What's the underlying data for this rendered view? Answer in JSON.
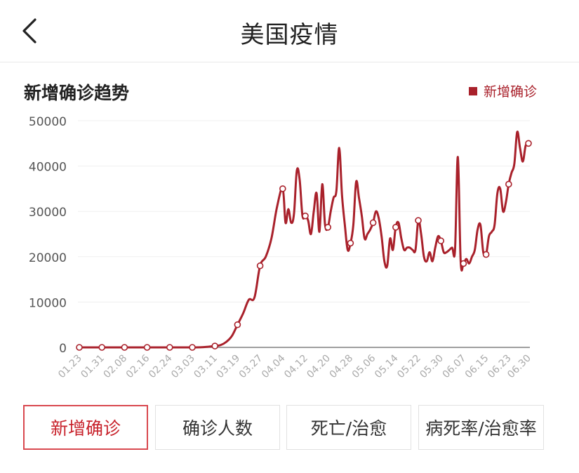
{
  "header": {
    "title": "美国疫情"
  },
  "chart_title": "新增确诊趋势",
  "colors": {
    "accent": "#a9212b",
    "active_tab": "#c8232c"
  },
  "tabs": [
    {
      "label": "新增确诊",
      "active": true
    },
    {
      "label": "确诊人数",
      "active": false
    },
    {
      "label": "死亡/治愈",
      "active": false
    },
    {
      "label": "病死率/治愈率",
      "active": false
    }
  ],
  "chart_data": {
    "type": "line",
    "title": "新增确诊趋势",
    "xlabel": "",
    "ylabel": "",
    "x_axis": "date",
    "x_start": "01.23",
    "ylim": [
      0,
      50000
    ],
    "yticks": [
      0,
      10000,
      20000,
      30000,
      40000,
      50000
    ],
    "xticks": [
      "01.23",
      "01.31",
      "02.08",
      "02.16",
      "02.24",
      "03.03",
      "03.11",
      "03.19",
      "03.27",
      "04.04",
      "04.12",
      "04.20",
      "04.28",
      "05.06",
      "05.14",
      "05.22",
      "05.30",
      "06.07",
      "06.15",
      "06.23",
      "06.30"
    ],
    "grid": true,
    "legend": {
      "position": "top-right",
      "entries": [
        "新增确诊"
      ]
    },
    "series": [
      {
        "name": "新增确诊",
        "color": "#a9212b",
        "points": [
          [
            "01.23",
            0
          ],
          [
            "01.31",
            0
          ],
          [
            "02.08",
            0
          ],
          [
            "02.16",
            0
          ],
          [
            "02.24",
            0
          ],
          [
            "03.03",
            0
          ],
          [
            "03.07",
            50
          ],
          [
            "03.11",
            300
          ],
          [
            "03.13",
            500
          ],
          [
            "03.15",
            1200
          ],
          [
            "03.17",
            2500
          ],
          [
            "03.19",
            5000
          ],
          [
            "03.21",
            7500
          ],
          [
            "03.23",
            10500
          ],
          [
            "03.25",
            11000
          ],
          [
            "03.27",
            18000
          ],
          [
            "03.29",
            20000
          ],
          [
            "03.31",
            24000
          ],
          [
            "04.02",
            31000
          ],
          [
            "04.04",
            35000
          ],
          [
            "04.05",
            27500
          ],
          [
            "04.06",
            30500
          ],
          [
            "04.07",
            27500
          ],
          [
            "04.08",
            29500
          ],
          [
            "04.09",
            39000
          ],
          [
            "04.10",
            37000
          ],
          [
            "04.11",
            29000
          ],
          [
            "04.12",
            29000
          ],
          [
            "04.13",
            28000
          ],
          [
            "04.14",
            25000
          ],
          [
            "04.15",
            30000
          ],
          [
            "04.16",
            34000
          ],
          [
            "04.17",
            25500
          ],
          [
            "04.18",
            36000
          ],
          [
            "04.19",
            27000
          ],
          [
            "04.20",
            26500
          ],
          [
            "04.21",
            30000
          ],
          [
            "04.22",
            33000
          ],
          [
            "04.23",
            34500
          ],
          [
            "04.24",
            44000
          ],
          [
            "04.25",
            33500
          ],
          [
            "04.26",
            27000
          ],
          [
            "04.27",
            21500
          ],
          [
            "04.28",
            23000
          ],
          [
            "04.29",
            27000
          ],
          [
            "04.30",
            36500
          ],
          [
            "05.01",
            33000
          ],
          [
            "05.02",
            29000
          ],
          [
            "05.03",
            24000
          ],
          [
            "05.04",
            25000
          ],
          [
            "05.05",
            26000
          ],
          [
            "05.06",
            27500
          ],
          [
            "05.07",
            30000
          ],
          [
            "05.08",
            28500
          ],
          [
            "05.09",
            24500
          ],
          [
            "05.10",
            19000
          ],
          [
            "05.11",
            18000
          ],
          [
            "05.12",
            24000
          ],
          [
            "05.13",
            21500
          ],
          [
            "05.14",
            26500
          ],
          [
            "05.15",
            27500
          ],
          [
            "05.16",
            24000
          ],
          [
            "05.17",
            21500
          ],
          [
            "05.18",
            22000
          ],
          [
            "05.19",
            22000
          ],
          [
            "05.20",
            21500
          ],
          [
            "05.21",
            21500
          ],
          [
            "05.22",
            28000
          ],
          [
            "05.23",
            25000
          ],
          [
            "05.24",
            20000
          ],
          [
            "05.25",
            19000
          ],
          [
            "05.26",
            21000
          ],
          [
            "05.27",
            19000
          ],
          [
            "05.28",
            22000
          ],
          [
            "05.29",
            24500
          ],
          [
            "05.30",
            23500
          ],
          [
            "05.31",
            21000
          ],
          [
            "06.01",
            21000
          ],
          [
            "06.02",
            21500
          ],
          [
            "06.03",
            22000
          ],
          [
            "06.04",
            21500
          ],
          [
            "06.05",
            42000
          ],
          [
            "06.06",
            19000
          ],
          [
            "06.07",
            18500
          ],
          [
            "06.08",
            19500
          ],
          [
            "06.09",
            18500
          ],
          [
            "06.10",
            20000
          ],
          [
            "06.11",
            21500
          ],
          [
            "06.12",
            26000
          ],
          [
            "06.13",
            27000
          ],
          [
            "06.14",
            21000
          ],
          [
            "06.15",
            20500
          ],
          [
            "06.16",
            24500
          ],
          [
            "06.17",
            25500
          ],
          [
            "06.18",
            27000
          ],
          [
            "06.19",
            34000
          ],
          [
            "06.20",
            35000
          ],
          [
            "06.21",
            30000
          ],
          [
            "06.22",
            32000
          ],
          [
            "06.23",
            36000
          ],
          [
            "06.24",
            38500
          ],
          [
            "06.25",
            40500
          ],
          [
            "06.26",
            47500
          ],
          [
            "06.27",
            44000
          ],
          [
            "06.28",
            41000
          ],
          [
            "06.29",
            44500
          ],
          [
            "06.30",
            45000
          ]
        ],
        "markers": [
          "01.23",
          "01.31",
          "02.08",
          "02.16",
          "02.24",
          "03.03",
          "03.11",
          "03.19",
          "03.27",
          "04.04",
          "04.12",
          "04.20",
          "04.28",
          "05.06",
          "05.14",
          "05.22",
          "05.30",
          "06.07",
          "06.15",
          "06.23",
          "06.30"
        ]
      }
    ]
  }
}
